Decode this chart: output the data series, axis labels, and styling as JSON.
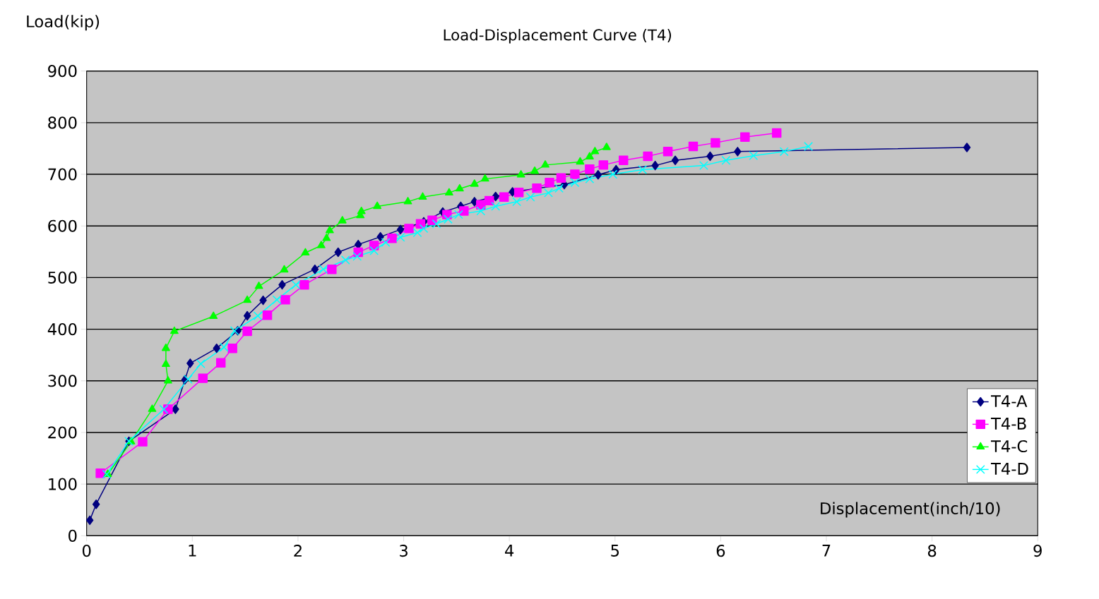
{
  "chart_data": {
    "type": "line",
    "title": "Load-Displacement Curve (T4)",
    "xlabel": "Displacement(inch/10)",
    "ylabel": "Load(kip)",
    "xlim": [
      0,
      9
    ],
    "xticks": [
      0,
      1,
      2,
      3,
      4,
      5,
      6,
      7,
      8,
      9
    ],
    "ylim": [
      0,
      900
    ],
    "yticks": [
      0,
      100,
      200,
      300,
      400,
      500,
      600,
      700,
      800,
      900
    ],
    "grid": "y",
    "legend": "bottom right",
    "series": [
      {
        "name": "T4-A",
        "color": "#000080",
        "marker": "diamond",
        "x": [
          0.03,
          0.09,
          0.4,
          0.84,
          0.93,
          0.98,
          1.23,
          1.43,
          1.52,
          1.67,
          1.85,
          2.16,
          2.38,
          2.57,
          2.78,
          2.97,
          3.19,
          3.37,
          3.54,
          3.67,
          3.87,
          4.03,
          4.52,
          4.84,
          5.01,
          5.38,
          5.57,
          5.9,
          6.16,
          8.33
        ],
        "values": [
          30,
          61,
          183,
          245,
          302,
          334,
          363,
          397,
          426,
          456,
          486,
          516,
          549,
          564,
          579,
          593,
          608,
          627,
          638,
          647,
          657,
          666,
          680,
          699,
          709,
          717,
          727,
          735,
          744,
          752
        ]
      },
      {
        "name": "T4-B",
        "color": "#ff00ff",
        "marker": "square",
        "x": [
          0.13,
          0.53,
          0.77,
          1.1,
          1.27,
          1.38,
          1.52,
          1.71,
          1.88,
          2.06,
          2.32,
          2.57,
          2.72,
          2.89,
          3.05,
          3.16,
          3.27,
          3.41,
          3.57,
          3.73,
          3.81,
          3.95,
          4.09,
          4.26,
          4.38,
          4.49,
          4.62,
          4.76,
          4.89,
          5.08,
          5.31,
          5.5,
          5.74,
          5.95,
          6.23,
          6.53
        ],
        "values": [
          121,
          182,
          245,
          305,
          335,
          363,
          396,
          427,
          457,
          486,
          516,
          549,
          562,
          576,
          595,
          604,
          611,
          622,
          629,
          641,
          649,
          656,
          665,
          673,
          684,
          693,
          700,
          710,
          718,
          727,
          735,
          744,
          754,
          761,
          772,
          780
        ]
      },
      {
        "name": "T4-C",
        "color": "#00ff00",
        "marker": "triangle",
        "x": [
          0.2,
          0.42,
          0.62,
          0.77,
          0.75,
          0.75,
          0.83,
          1.2,
          1.52,
          1.63,
          1.87,
          2.07,
          2.22,
          2.27,
          2.3,
          2.42,
          2.59,
          2.6,
          2.75,
          3.04,
          3.18,
          3.43,
          3.53,
          3.67,
          3.77,
          4.11,
          4.24,
          4.34,
          4.67,
          4.76,
          4.81,
          4.92
        ],
        "values": [
          119,
          182,
          245,
          300,
          332,
          363,
          396,
          425,
          456,
          483,
          515,
          548,
          562,
          576,
          591,
          610,
          620,
          628,
          638,
          647,
          656,
          664,
          672,
          681,
          691,
          699,
          706,
          718,
          724,
          734,
          744,
          752
        ]
      },
      {
        "name": "T4-D",
        "color": "#00ffff",
        "marker": "cross",
        "x": [
          0.19,
          0.4,
          0.73,
          0.96,
          1.08,
          1.3,
          1.4,
          1.62,
          1.8,
          1.98,
          2.24,
          2.45,
          2.56,
          2.72,
          2.83,
          2.97,
          3.13,
          3.19,
          3.31,
          3.42,
          3.52,
          3.73,
          3.87,
          4.07,
          4.2,
          4.37,
          4.47,
          4.62,
          4.76,
          4.98,
          5.26,
          5.84,
          6.05,
          6.31,
          6.6,
          6.83
        ],
        "values": [
          119,
          183,
          245,
          303,
          333,
          365,
          397,
          426,
          457,
          486,
          516,
          534,
          541,
          552,
          568,
          578,
          587,
          595,
          604,
          613,
          622,
          629,
          638,
          647,
          656,
          664,
          673,
          684,
          691,
          700,
          709,
          717,
          727,
          736,
          744,
          754
        ]
      }
    ]
  }
}
